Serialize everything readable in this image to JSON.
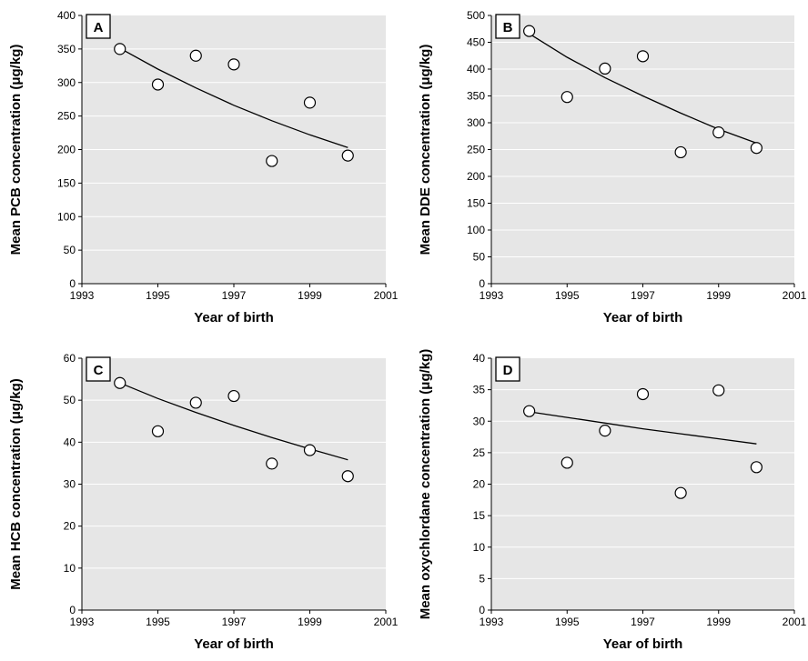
{
  "colors": {
    "plot_background": "#e6e6e6",
    "gridline": "#ffffff",
    "marker_fill": "#ffffff",
    "stroke": "#000000"
  },
  "chart_data": [
    {
      "type": "scatter",
      "panel": "A",
      "xlabel": "Year of birth",
      "ylabel": "Mean PCB concentration (μg/kg)",
      "xlim": [
        1993,
        2001
      ],
      "ylim": [
        0,
        400
      ],
      "xticks": [
        "1993",
        "1995",
        "1997",
        "1999",
        "2001"
      ],
      "yticks": [
        "0",
        "50",
        "100",
        "150",
        "200",
        "250",
        "300",
        "350",
        "400"
      ],
      "grid": true,
      "points": [
        {
          "x": 1994,
          "y": 350
        },
        {
          "x": 1995,
          "y": 297
        },
        {
          "x": 1996,
          "y": 340
        },
        {
          "x": 1997,
          "y": 327
        },
        {
          "x": 1998,
          "y": 183
        },
        {
          "x": 1999,
          "y": 270
        },
        {
          "x": 2000,
          "y": 191
        }
      ],
      "trend": [
        {
          "x": 1994,
          "y": 351
        },
        {
          "x": 1995,
          "y": 320
        },
        {
          "x": 1996,
          "y": 292
        },
        {
          "x": 1997,
          "y": 266
        },
        {
          "x": 1998,
          "y": 243
        },
        {
          "x": 1999,
          "y": 222
        },
        {
          "x": 2000,
          "y": 203
        }
      ]
    },
    {
      "type": "scatter",
      "panel": "B",
      "xlabel": "Year of birth",
      "ylabel": "Mean DDE concentration (μg/kg)",
      "xlim": [
        1993,
        2001
      ],
      "ylim": [
        0,
        500
      ],
      "xticks": [
        "1993",
        "1995",
        "1997",
        "1999",
        "2001"
      ],
      "yticks": [
        "0",
        "50",
        "100",
        "150",
        "200",
        "250",
        "300",
        "350",
        "400",
        "450",
        "500"
      ],
      "grid": true,
      "points": [
        {
          "x": 1994,
          "y": 471
        },
        {
          "x": 1995,
          "y": 348
        },
        {
          "x": 1996,
          "y": 401
        },
        {
          "x": 1997,
          "y": 424
        },
        {
          "x": 1998,
          "y": 245
        },
        {
          "x": 1999,
          "y": 282
        },
        {
          "x": 2000,
          "y": 253
        }
      ],
      "trend": [
        {
          "x": 1994,
          "y": 466
        },
        {
          "x": 1995,
          "y": 422
        },
        {
          "x": 1996,
          "y": 384
        },
        {
          "x": 1997,
          "y": 350
        },
        {
          "x": 1998,
          "y": 318
        },
        {
          "x": 1999,
          "y": 288
        },
        {
          "x": 2000,
          "y": 262
        }
      ]
    },
    {
      "type": "scatter",
      "panel": "C",
      "xlabel": "Year of birth",
      "ylabel": "Mean HCB concentration (μg/kg)",
      "xlim": [
        1993,
        2001
      ],
      "ylim": [
        0,
        60
      ],
      "xticks": [
        "1993",
        "1995",
        "1997",
        "1999",
        "2001"
      ],
      "yticks": [
        "0",
        "10",
        "20",
        "30",
        "40",
        "50",
        "60"
      ],
      "grid": true,
      "points": [
        {
          "x": 1994,
          "y": 54.1
        },
        {
          "x": 1995,
          "y": 42.6
        },
        {
          "x": 1996,
          "y": 49.4
        },
        {
          "x": 1997,
          "y": 51.0
        },
        {
          "x": 1998,
          "y": 34.9
        },
        {
          "x": 1999,
          "y": 38.1
        },
        {
          "x": 2000,
          "y": 31.9
        }
      ],
      "trend": [
        {
          "x": 1994,
          "y": 54.1
        },
        {
          "x": 1995,
          "y": 50.4
        },
        {
          "x": 1996,
          "y": 47.1
        },
        {
          "x": 1997,
          "y": 44.0
        },
        {
          "x": 1998,
          "y": 41.1
        },
        {
          "x": 1999,
          "y": 38.4
        },
        {
          "x": 2000,
          "y": 35.8
        }
      ]
    },
    {
      "type": "scatter",
      "panel": "D",
      "xlabel": "Year of birth",
      "ylabel": "Mean oxychlordane concentration (μg/kg)",
      "xlim": [
        1993,
        2001
      ],
      "ylim": [
        0,
        40
      ],
      "xticks": [
        "1993",
        "1995",
        "1997",
        "1999",
        "2001"
      ],
      "yticks": [
        "0",
        "5",
        "10",
        "15",
        "20",
        "25",
        "30",
        "35",
        "40"
      ],
      "grid": true,
      "points": [
        {
          "x": 1994,
          "y": 31.6
        },
        {
          "x": 1995,
          "y": 23.4
        },
        {
          "x": 1996,
          "y": 28.5
        },
        {
          "x": 1997,
          "y": 34.3
        },
        {
          "x": 1998,
          "y": 18.6
        },
        {
          "x": 1999,
          "y": 34.9
        },
        {
          "x": 2000,
          "y": 22.7
        }
      ],
      "trend": [
        {
          "x": 1994,
          "y": 31.5
        },
        {
          "x": 1995,
          "y": 30.6
        },
        {
          "x": 1996,
          "y": 29.7
        },
        {
          "x": 1997,
          "y": 28.8
        },
        {
          "x": 1998,
          "y": 28.0
        },
        {
          "x": 1999,
          "y": 27.2
        },
        {
          "x": 2000,
          "y": 26.4
        }
      ]
    }
  ]
}
